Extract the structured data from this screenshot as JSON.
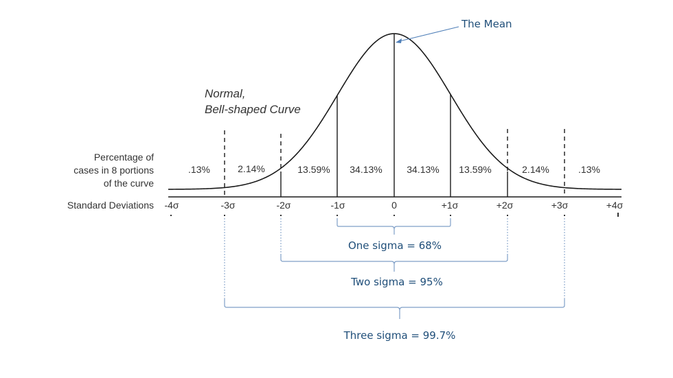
{
  "title_line1": "Normal,",
  "title_line2": "Bell-shaped Curve",
  "row_label_percent": [
    "Percentage of",
    "cases in 8 portions",
    "of the curve"
  ],
  "row_label_sd": "Standard Deviations",
  "mean_label": "The Mean",
  "sd_ticks": [
    "-4σ",
    "-3σ",
    "-2σ",
    "-1σ",
    "0",
    "+1σ",
    "+2σ",
    "+3σ",
    "+4σ"
  ],
  "percentages": [
    ".13%",
    "2.14%",
    "13.59%",
    "34.13%",
    "34.13%",
    "13.59%",
    "2.14%",
    ".13%"
  ],
  "brackets": {
    "one": "One sigma = 68%",
    "two": "Two sigma = 95%",
    "three": "Three sigma = 99.7%"
  },
  "colors": {
    "curve": "#1a1a1a",
    "text": "#333333",
    "accent": "#1f4e79",
    "bracket": "#7f9fc7"
  }
}
